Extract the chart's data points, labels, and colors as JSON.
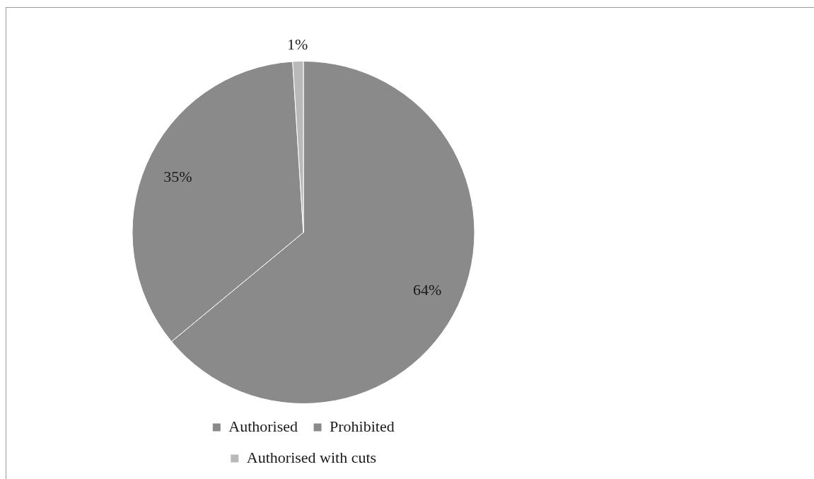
{
  "chart_data": {
    "type": "pie",
    "categories": [
      "Authorised",
      "Prohibited",
      "Authorised with cuts"
    ],
    "values": [
      64,
      35,
      1
    ],
    "colors": [
      "#8a8a8a",
      "#8a8a8a",
      "#b9b9b9"
    ],
    "value_labels": [
      "64%",
      "35%",
      "1%"
    ],
    "legend": "bottom"
  }
}
